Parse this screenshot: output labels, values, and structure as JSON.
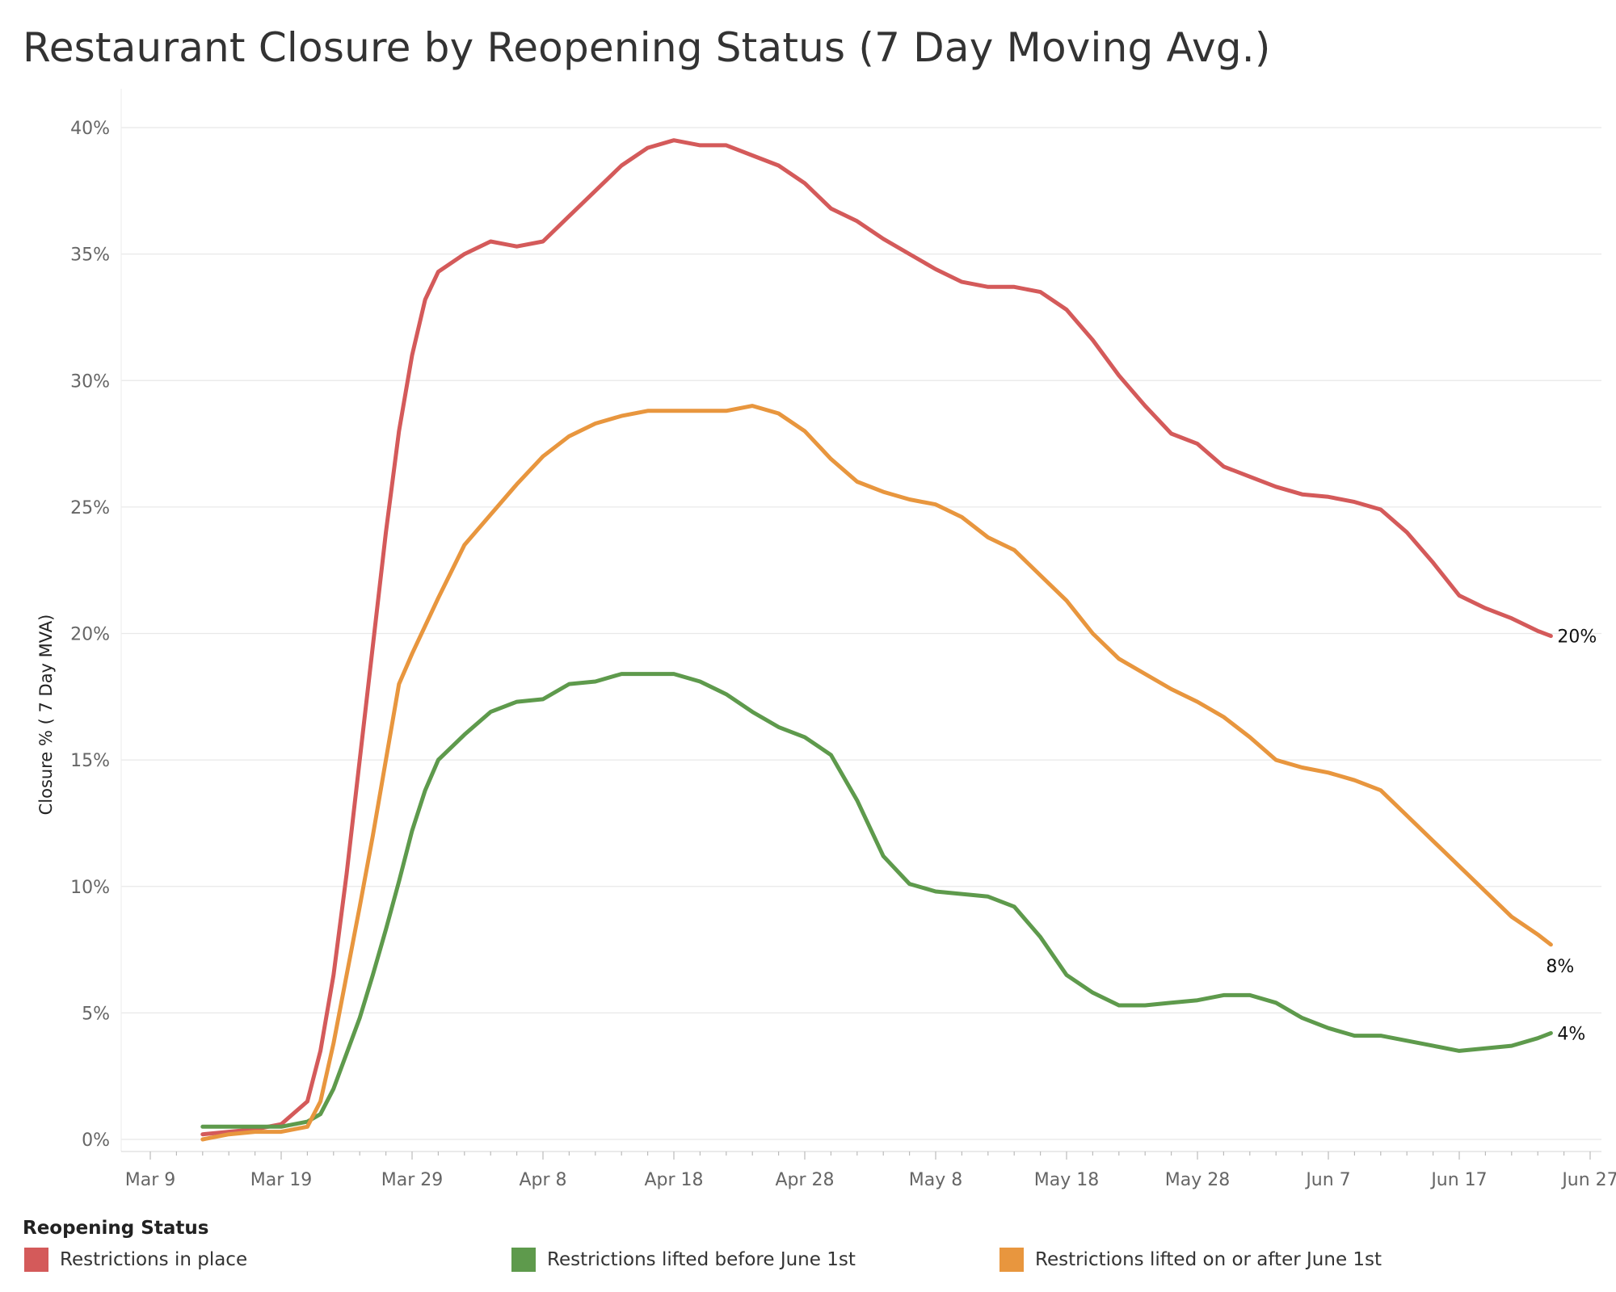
{
  "title": "Restaurant Closure by Reopening Status (7 Day Moving Avg.)",
  "legend": {
    "title": "Reopening Status"
  },
  "chart_data": {
    "type": "line",
    "title": "Restaurant Closure by Reopening Status (7 Day Moving Avg.)",
    "xlabel": "",
    "ylabel": "Closure % ( 7 Day MVA)",
    "x_ticks": [
      "Mar 9",
      "Mar 19",
      "Mar 29",
      "Apr 8",
      "Apr 18",
      "Apr 28",
      "May 8",
      "May 18",
      "May 28",
      "Jun 7",
      "Jun 17",
      "Jun 27"
    ],
    "y_ticks": [
      "0%",
      "5%",
      "10%",
      "15%",
      "20%",
      "25%",
      "30%",
      "35%",
      "40%"
    ],
    "ylim": [
      0,
      40
    ],
    "x_range_days": [
      "Mar 9",
      "Jun 27"
    ],
    "grid": true,
    "legend_position": "bottom",
    "x": [
      "Mar 13",
      "Mar 15",
      "Mar 17",
      "Mar 19",
      "Mar 21",
      "Mar 22",
      "Mar 23",
      "Mar 24",
      "Mar 25",
      "Mar 26",
      "Mar 27",
      "Mar 28",
      "Mar 29",
      "Mar 30",
      "Mar 31",
      "Apr 2",
      "Apr 4",
      "Apr 6",
      "Apr 8",
      "Apr 10",
      "Apr 12",
      "Apr 14",
      "Apr 16",
      "Apr 18",
      "Apr 20",
      "Apr 22",
      "Apr 24",
      "Apr 26",
      "Apr 28",
      "Apr 30",
      "May 2",
      "May 4",
      "May 6",
      "May 8",
      "May 10",
      "May 12",
      "May 14",
      "May 16",
      "May 18",
      "May 20",
      "May 22",
      "May 24",
      "May 26",
      "May 28",
      "May 30",
      "Jun 1",
      "Jun 3",
      "Jun 5",
      "Jun 7",
      "Jun 9",
      "Jun 11",
      "Jun 13",
      "Jun 15",
      "Jun 17",
      "Jun 19",
      "Jun 21",
      "Jun 23",
      "Jun 24"
    ],
    "series": [
      {
        "name": "Restrictions in place",
        "color": "#D45A5A",
        "values": [
          0.2,
          0.3,
          0.4,
          0.6,
          1.5,
          3.5,
          6.5,
          10.5,
          15.0,
          19.5,
          24.0,
          28.0,
          31.0,
          33.2,
          34.3,
          35.0,
          35.5,
          35.3,
          35.5,
          36.5,
          37.5,
          38.5,
          39.2,
          39.5,
          39.3,
          39.3,
          38.9,
          38.5,
          37.8,
          36.8,
          36.3,
          35.6,
          35.0,
          34.4,
          33.9,
          33.7,
          33.7,
          33.5,
          32.8,
          31.6,
          30.2,
          29.0,
          27.9,
          27.5,
          26.6,
          26.2,
          25.8,
          25.5,
          25.4,
          25.2,
          24.9,
          24.0,
          22.8,
          21.5,
          21.0,
          20.6,
          20.1,
          19.9
        ],
        "end_label": "20%"
      },
      {
        "name": "Restrictions lifted before June 1st",
        "color": "#5E9A4C",
        "values": [
          0.5,
          0.5,
          0.5,
          0.5,
          0.7,
          1.0,
          2.0,
          3.4,
          4.8,
          6.5,
          8.3,
          10.2,
          12.2,
          13.8,
          15.0,
          16.0,
          16.9,
          17.3,
          17.4,
          18.0,
          18.1,
          18.4,
          18.4,
          18.4,
          18.1,
          17.6,
          16.9,
          16.3,
          15.9,
          15.2,
          13.4,
          11.2,
          10.1,
          9.8,
          9.7,
          9.6,
          9.2,
          8.0,
          6.5,
          5.8,
          5.3,
          5.3,
          5.4,
          5.5,
          5.7,
          5.7,
          5.4,
          4.8,
          4.4,
          4.1,
          4.1,
          3.9,
          3.7,
          3.5,
          3.6,
          3.7,
          4.0,
          4.2
        ],
        "end_label": "4%"
      },
      {
        "name": "Restrictions lifted on or after June 1st",
        "color": "#E8963E",
        "values": [
          0.0,
          0.2,
          0.3,
          0.3,
          0.5,
          1.5,
          3.8,
          6.5,
          9.2,
          12.0,
          15.0,
          18.0,
          19.2,
          20.3,
          21.4,
          23.5,
          24.7,
          25.9,
          27.0,
          27.8,
          28.3,
          28.6,
          28.8,
          28.8,
          28.8,
          28.8,
          29.0,
          28.7,
          28.0,
          26.9,
          26.0,
          25.6,
          25.3,
          25.1,
          24.6,
          23.8,
          23.3,
          22.3,
          21.3,
          20.0,
          19.0,
          18.4,
          17.8,
          17.3,
          16.7,
          15.9,
          15.0,
          14.7,
          14.5,
          14.2,
          13.8,
          12.8,
          11.8,
          10.8,
          9.8,
          8.8,
          8.1,
          7.7
        ],
        "end_label": "8%"
      }
    ]
  }
}
